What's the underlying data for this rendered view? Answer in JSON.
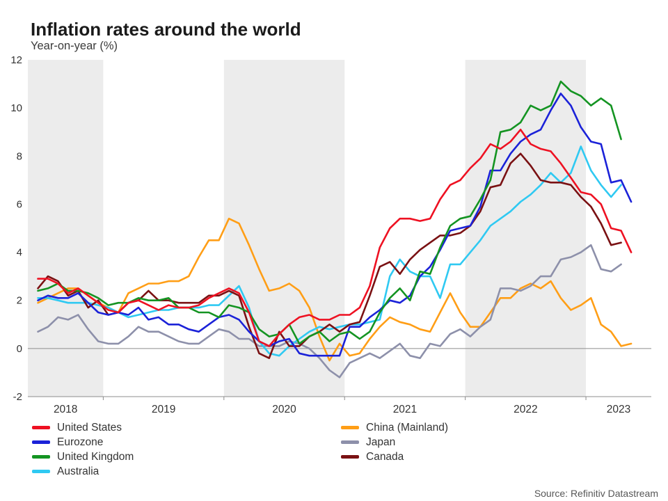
{
  "title": "Inflation rates around the world",
  "subtitle": "Year-on-year (%)",
  "source": "Source: Refinitiv Datastream",
  "colors": {
    "background": "#ffffff",
    "year_band": "#ececec",
    "axis": "#8c8c8c",
    "tick_text": "#333333"
  },
  "chart_data": {
    "type": "line",
    "frequency": "monthly",
    "x_start": "2018-06",
    "x_end": "2023-05",
    "x_tick_labels": [
      "2018",
      "2019",
      "2020",
      "2021",
      "2022",
      "2023"
    ],
    "ylim": [
      -2,
      12
    ],
    "y_ticks": [
      -2,
      0,
      2,
      4,
      6,
      8,
      10,
      12
    ],
    "grid": "alternating-year-bands",
    "legend_position": "bottom",
    "series": [
      {
        "name": "United States",
        "color": "#ee1122",
        "values": [
          2.9,
          2.9,
          2.7,
          2.3,
          2.5,
          2.2,
          1.9,
          1.6,
          1.5,
          1.9,
          2.0,
          1.8,
          1.6,
          1.8,
          1.7,
          1.7,
          1.8,
          2.1,
          2.3,
          2.5,
          2.3,
          1.5,
          0.3,
          0.1,
          0.6,
          1.0,
          1.3,
          1.4,
          1.2,
          1.2,
          1.4,
          1.4,
          1.7,
          2.6,
          4.2,
          5.0,
          5.4,
          5.4,
          5.3,
          5.4,
          6.2,
          6.8,
          7.0,
          7.5,
          7.9,
          8.5,
          8.3,
          8.6,
          9.1,
          8.5,
          8.3,
          8.2,
          7.7,
          7.1,
          6.5,
          6.4,
          6.0,
          5.0,
          4.9,
          4.0
        ]
      },
      {
        "name": "Eurozone",
        "color": "#1b22d8",
        "values": [
          2.0,
          2.2,
          2.1,
          2.1,
          2.3,
          1.9,
          1.5,
          1.4,
          1.5,
          1.4,
          1.7,
          1.2,
          1.3,
          1.0,
          1.0,
          0.8,
          0.7,
          1.0,
          1.3,
          1.4,
          1.2,
          0.7,
          0.3,
          0.1,
          0.3,
          0.4,
          -0.2,
          -0.3,
          -0.3,
          -0.3,
          -0.3,
          0.9,
          0.9,
          1.3,
          1.6,
          2.0,
          1.9,
          2.2,
          3.0,
          3.4,
          4.1,
          4.9,
          5.0,
          5.1,
          5.9,
          7.4,
          7.4,
          8.1,
          8.6,
          8.9,
          9.1,
          9.9,
          10.6,
          10.1,
          9.2,
          8.6,
          8.5,
          6.9,
          7.0,
          6.1
        ]
      },
      {
        "name": "United Kingdom",
        "color": "#149422",
        "values": [
          2.4,
          2.5,
          2.7,
          2.4,
          2.4,
          2.3,
          2.1,
          1.8,
          1.9,
          1.9,
          2.1,
          2.0,
          2.0,
          2.1,
          1.7,
          1.7,
          1.5,
          1.5,
          1.3,
          1.8,
          1.7,
          1.5,
          0.8,
          0.5,
          0.6,
          1.0,
          0.2,
          0.5,
          0.7,
          0.3,
          0.6,
          0.7,
          0.4,
          0.7,
          1.5,
          2.1,
          2.5,
          2.0,
          3.2,
          3.1,
          4.2,
          5.1,
          5.4,
          5.5,
          6.2,
          7.0,
          9.0,
          9.1,
          9.4,
          10.1,
          9.9,
          10.1,
          11.1,
          10.7,
          10.5,
          10.1,
          10.4,
          10.1,
          8.7,
          null
        ]
      },
      {
        "name": "Australia",
        "color": "#2fc9f2",
        "values": [
          2.1,
          2.1,
          2.0,
          1.9,
          1.9,
          1.9,
          1.8,
          1.7,
          1.5,
          1.3,
          1.4,
          1.5,
          1.6,
          1.6,
          1.7,
          1.7,
          1.7,
          1.8,
          1.8,
          2.2,
          2.6,
          1.7,
          0.3,
          -0.2,
          -0.3,
          0.1,
          0.4,
          0.7,
          0.9,
          0.8,
          0.9,
          1.0,
          1.0,
          1.1,
          1.2,
          3.0,
          3.7,
          3.2,
          3.0,
          3.0,
          2.1,
          3.5,
          3.5,
          4.0,
          4.5,
          5.1,
          5.4,
          5.7,
          6.1,
          6.4,
          6.8,
          7.3,
          6.9,
          7.3,
          8.4,
          7.4,
          6.8,
          6.3,
          6.8,
          null
        ]
      },
      {
        "name": "China (Mainland)",
        "color": "#ff9e16",
        "values": [
          1.9,
          2.1,
          2.3,
          2.5,
          2.5,
          2.2,
          1.9,
          1.7,
          1.5,
          2.3,
          2.5,
          2.7,
          2.7,
          2.8,
          2.8,
          3.0,
          3.8,
          4.5,
          4.5,
          5.4,
          5.2,
          4.3,
          3.3,
          2.4,
          2.5,
          2.7,
          2.4,
          1.7,
          0.5,
          -0.5,
          0.2,
          -0.3,
          -0.2,
          0.4,
          0.9,
          1.3,
          1.1,
          1.0,
          0.8,
          0.7,
          1.5,
          2.3,
          1.5,
          0.9,
          0.9,
          1.5,
          2.1,
          2.1,
          2.5,
          2.7,
          2.5,
          2.8,
          2.1,
          1.6,
          1.8,
          2.1,
          1.0,
          0.7,
          0.1,
          0.2
        ]
      },
      {
        "name": "Japan",
        "color": "#8d90aa",
        "values": [
          0.7,
          0.9,
          1.3,
          1.2,
          1.4,
          0.8,
          0.3,
          0.2,
          0.2,
          0.5,
          0.9,
          0.7,
          0.7,
          0.5,
          0.3,
          0.2,
          0.2,
          0.5,
          0.8,
          0.7,
          0.4,
          0.4,
          0.1,
          0.1,
          0.1,
          0.3,
          0.2,
          0.0,
          -0.4,
          -0.9,
          -1.2,
          -0.6,
          -0.4,
          -0.2,
          -0.4,
          -0.1,
          0.2,
          -0.3,
          -0.4,
          0.2,
          0.1,
          0.6,
          0.8,
          0.5,
          0.9,
          1.2,
          2.5,
          2.5,
          2.4,
          2.6,
          3.0,
          3.0,
          3.7,
          3.8,
          4.0,
          4.3,
          3.3,
          3.2,
          3.5,
          null
        ]
      },
      {
        "name": "Canada",
        "color": "#7a1113",
        "values": [
          2.5,
          3.0,
          2.8,
          2.2,
          2.4,
          1.7,
          2.0,
          1.4,
          1.5,
          1.9,
          2.0,
          2.4,
          2.0,
          2.0,
          1.9,
          1.9,
          1.9,
          2.2,
          2.2,
          2.4,
          2.2,
          0.9,
          -0.2,
          -0.4,
          0.7,
          0.1,
          0.1,
          0.5,
          0.7,
          1.0,
          0.7,
          1.0,
          1.1,
          2.2,
          3.4,
          3.6,
          3.1,
          3.7,
          4.1,
          4.4,
          4.7,
          4.7,
          4.8,
          5.1,
          5.7,
          6.7,
          6.8,
          7.7,
          8.1,
          7.6,
          7.0,
          6.9,
          6.9,
          6.8,
          6.3,
          5.9,
          5.2,
          4.3,
          4.4,
          null
        ]
      }
    ]
  }
}
